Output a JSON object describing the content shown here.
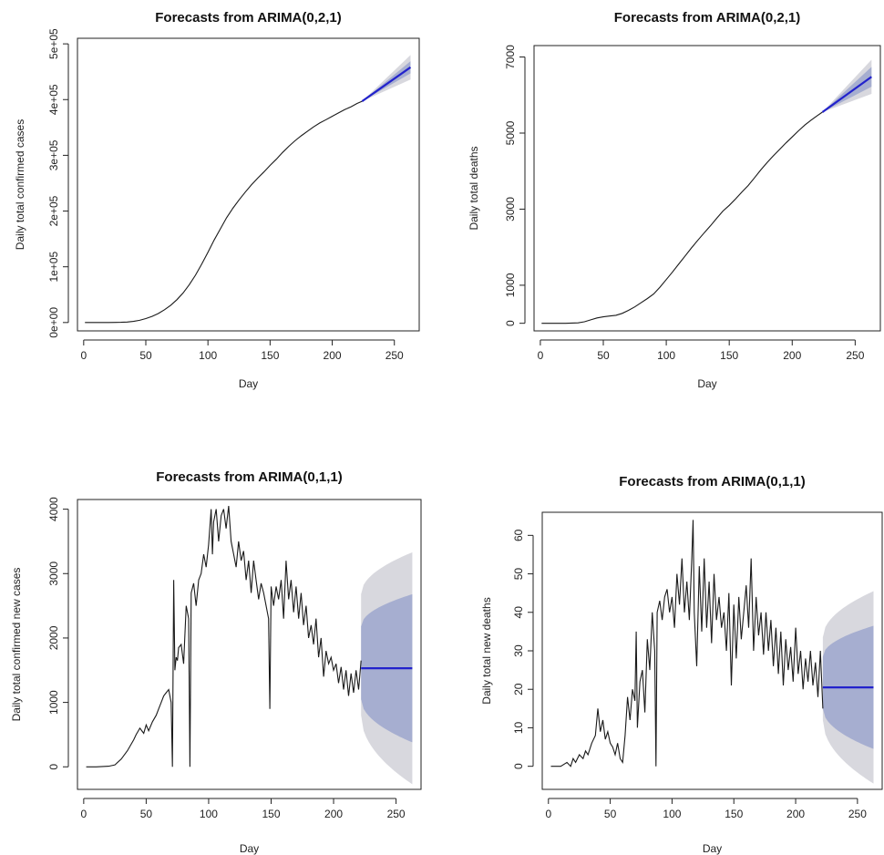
{
  "chart_data": [
    {
      "type": "line",
      "title": "Forecasts from ARIMA(0,2,1)",
      "xlabel": "Day",
      "ylabel": "Daily total confirmed cases",
      "xticks": [
        0,
        50,
        100,
        150,
        200,
        250
      ],
      "yticks": [
        0,
        100000,
        200000,
        300000,
        400000,
        500000
      ],
      "ytick_labels": [
        "0e+00",
        "1e+05",
        "2e+05",
        "3e+05",
        "4e+05",
        "5e+05"
      ],
      "xlim": [
        -5,
        270
      ],
      "ylim": [
        -15000,
        510000
      ],
      "grid": false,
      "series": [
        {
          "kind": "observed",
          "x": [
            1,
            10,
            20,
            30,
            35,
            40,
            45,
            50,
            55,
            60,
            65,
            70,
            75,
            80,
            85,
            90,
            95,
            100,
            105,
            110,
            115,
            120,
            125,
            130,
            135,
            140,
            145,
            150,
            155,
            160,
            165,
            170,
            175,
            180,
            185,
            190,
            195,
            200,
            205,
            210,
            215,
            220,
            224
          ],
          "y": [
            0,
            0,
            50,
            300,
            800,
            2000,
            4000,
            7000,
            11000,
            16000,
            23000,
            31000,
            41000,
            53000,
            68000,
            85000,
            105000,
            126000,
            148000,
            168000,
            188000,
            205000,
            220000,
            234000,
            247000,
            259000,
            270000,
            282000,
            293000,
            305000,
            316000,
            326000,
            335000,
            343000,
            351000,
            358000,
            364000,
            370000,
            376000,
            382000,
            387000,
            393000,
            397000
          ]
        },
        {
          "kind": "forecast",
          "x": [
            224,
            263
          ],
          "y": [
            397000,
            458000
          ],
          "inner": [
            [
              0,
              0
            ],
            [
              11000,
              11000
            ]
          ],
          "outer": [
            [
              0,
              0
            ],
            [
              22000,
              22000
            ]
          ]
        }
      ]
    },
    {
      "type": "line",
      "title": "Forecasts from ARIMA(0,2,1)",
      "xlabel": "Day",
      "ylabel": "Daily total deaths",
      "xticks": [
        0,
        50,
        100,
        150,
        200,
        250
      ],
      "yticks": [
        0,
        1000,
        3000,
        5000,
        7000
      ],
      "ytick_labels": [
        "0",
        "1000",
        "3000",
        "5000",
        "7000"
      ],
      "xlim": [
        -5,
        270
      ],
      "ylim": [
        -200,
        7300
      ],
      "grid": false,
      "series": [
        {
          "kind": "observed",
          "x": [
            1,
            10,
            20,
            30,
            35,
            40,
            45,
            50,
            55,
            60,
            65,
            70,
            75,
            80,
            85,
            90,
            95,
            100,
            105,
            110,
            115,
            120,
            125,
            130,
            135,
            140,
            145,
            150,
            155,
            160,
            165,
            170,
            175,
            180,
            185,
            190,
            195,
            200,
            205,
            210,
            215,
            220,
            224
          ],
          "y": [
            0,
            0,
            0,
            10,
            40,
            90,
            140,
            170,
            190,
            210,
            260,
            340,
            430,
            540,
            650,
            770,
            950,
            1150,
            1350,
            1560,
            1770,
            1980,
            2180,
            2370,
            2560,
            2760,
            2950,
            3100,
            3270,
            3450,
            3620,
            3820,
            4030,
            4220,
            4400,
            4570,
            4740,
            4900,
            5060,
            5210,
            5340,
            5460,
            5550
          ]
        },
        {
          "kind": "forecast",
          "x": [
            224,
            263
          ],
          "y": [
            5550,
            6480
          ],
          "inner": [
            [
              0,
              0
            ],
            [
              260,
              260
            ]
          ],
          "outer": [
            [
              0,
              0
            ],
            [
              450,
              450
            ]
          ]
        }
      ]
    },
    {
      "type": "line",
      "title": "Forecasts from ARIMA(0,1,1)",
      "xlabel": "Day",
      "ylabel": "Daily total confirmed new cases",
      "xticks": [
        0,
        50,
        100,
        150,
        200,
        250
      ],
      "yticks": [
        0,
        1000,
        2000,
        3000,
        4000
      ],
      "ytick_labels": [
        "0",
        "1000",
        "2000",
        "3000",
        "4000"
      ],
      "xlim": [
        -5,
        270
      ],
      "ylim": [
        -350,
        4150
      ],
      "grid": false,
      "series": [
        {
          "kind": "observed",
          "x": [
            2,
            10,
            20,
            25,
            30,
            35,
            38,
            40,
            42,
            45,
            48,
            50,
            52,
            55,
            58,
            60,
            62,
            64,
            66,
            68,
            70,
            71,
            72,
            73,
            74,
            75,
            76,
            78,
            80,
            82,
            84,
            85,
            86,
            88,
            90,
            92,
            94,
            96,
            98,
            100,
            102,
            103,
            104,
            106,
            108,
            110,
            112,
            114,
            116,
            118,
            120,
            122,
            124,
            126,
            128,
            130,
            132,
            134,
            136,
            138,
            140,
            142,
            144,
            146,
            148,
            149,
            150,
            152,
            154,
            156,
            158,
            160,
            162,
            164,
            166,
            168,
            170,
            172,
            174,
            176,
            178,
            180,
            182,
            184,
            186,
            188,
            190,
            192,
            194,
            196,
            198,
            200,
            202,
            204,
            206,
            208,
            210,
            212,
            214,
            216,
            218,
            220,
            222
          ],
          "y": [
            0,
            0,
            10,
            30,
            120,
            250,
            350,
            420,
            500,
            600,
            520,
            650,
            560,
            700,
            800,
            900,
            1000,
            1100,
            1150,
            1200,
            1000,
            0,
            2900,
            1500,
            1700,
            1650,
            1850,
            1900,
            1600,
            2500,
            2300,
            0,
            2700,
            2850,
            2500,
            2900,
            3000,
            3300,
            3100,
            3450,
            4000,
            3300,
            3800,
            4000,
            3500,
            3900,
            4000,
            3700,
            4050,
            3500,
            3300,
            3100,
            3500,
            3200,
            3350,
            2900,
            3200,
            2700,
            3200,
            2900,
            2600,
            2850,
            2700,
            2500,
            2300,
            900,
            2800,
            2500,
            2800,
            2600,
            2900,
            2300,
            3200,
            2600,
            2900,
            2400,
            2800,
            2300,
            2700,
            2200,
            2500,
            2000,
            2200,
            1900,
            2300,
            1700,
            2000,
            1400,
            1800,
            1600,
            1700,
            1500,
            1600,
            1300,
            1550,
            1200,
            1500,
            1100,
            1450,
            1150,
            1500,
            1200,
            1650
          ]
        },
        {
          "kind": "forecast",
          "x": [
            222,
            263
          ],
          "y": [
            1530,
            1530
          ],
          "inner": [
            [
              480,
              650
            ],
            [
              1150,
              1150
            ]
          ],
          "outer": [
            [
              730,
              1150
            ],
            [
              1800,
              1800
            ]
          ]
        }
      ]
    },
    {
      "type": "line",
      "title": "Forecasts from ARIMA(0,1,1)",
      "xlabel": "Day",
      "ylabel": "Daily total new deaths",
      "xticks": [
        0,
        50,
        100,
        150,
        200,
        250
      ],
      "yticks": [
        0,
        10,
        20,
        30,
        40,
        50,
        60
      ],
      "ytick_labels": [
        "0",
        "10",
        "20",
        "30",
        "40",
        "50",
        "60"
      ],
      "xlim": [
        -5,
        270
      ],
      "ylim": [
        -6,
        66
      ],
      "grid": false,
      "series": [
        {
          "kind": "observed",
          "x": [
            2,
            10,
            15,
            18,
            20,
            22,
            25,
            28,
            30,
            32,
            35,
            38,
            40,
            42,
            44,
            46,
            48,
            50,
            52,
            54,
            56,
            58,
            60,
            62,
            64,
            66,
            68,
            70,
            71,
            72,
            74,
            76,
            78,
            80,
            82,
            84,
            86,
            87,
            88,
            90,
            92,
            94,
            96,
            98,
            100,
            102,
            104,
            106,
            108,
            110,
            112,
            114,
            116,
            117,
            118,
            120,
            122,
            124,
            126,
            128,
            130,
            132,
            134,
            136,
            138,
            140,
            142,
            144,
            146,
            148,
            150,
            152,
            154,
            156,
            158,
            160,
            162,
            164,
            166,
            168,
            170,
            172,
            174,
            176,
            178,
            180,
            182,
            184,
            186,
            188,
            190,
            192,
            194,
            196,
            198,
            200,
            202,
            204,
            206,
            208,
            210,
            212,
            214,
            216,
            218,
            220,
            222
          ],
          "y": [
            0,
            0,
            1,
            0,
            2,
            1,
            3,
            2,
            4,
            3,
            6,
            8,
            15,
            9,
            12,
            7,
            9,
            6,
            5,
            3,
            6,
            2,
            1,
            8,
            18,
            12,
            20,
            17,
            35,
            10,
            22,
            25,
            14,
            33,
            25,
            40,
            30,
            0,
            40,
            43,
            38,
            44,
            46,
            40,
            44,
            36,
            50,
            42,
            54,
            40,
            48,
            38,
            54,
            64,
            40,
            26,
            52,
            35,
            54,
            36,
            48,
            32,
            50,
            38,
            44,
            36,
            40,
            30,
            45,
            21,
            42,
            28,
            44,
            33,
            40,
            47,
            36,
            54,
            30,
            44,
            34,
            40,
            29,
            40,
            30,
            38,
            26,
            36,
            24,
            35,
            21,
            33,
            25,
            31,
            22,
            36,
            24,
            30,
            20,
            28,
            22,
            30,
            21,
            27,
            18,
            30,
            15
          ]
        },
        {
          "kind": "forecast",
          "x": [
            222,
            263
          ],
          "y": [
            20.5,
            20.5
          ],
          "inner": [
            [
              5.5,
              8
            ],
            [
              16,
              16
            ]
          ],
          "outer": [
            [
              8.5,
              13
            ],
            [
              25,
              25
            ]
          ]
        }
      ]
    }
  ]
}
